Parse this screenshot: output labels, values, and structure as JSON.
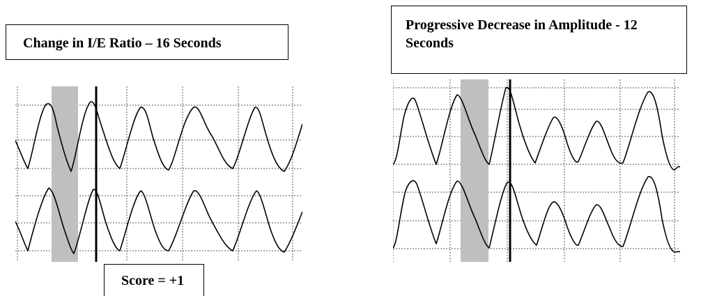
{
  "left_panel": {
    "title": "Change in I/E Ratio – 16 Seconds",
    "score": "Score = +1"
  },
  "right_panel": {
    "title": "Progressive Decrease in Amplitude - 12 Seconds"
  },
  "colors": {
    "trace": "#000000",
    "grid": "#555555",
    "shade": "#bfbfbf"
  }
}
